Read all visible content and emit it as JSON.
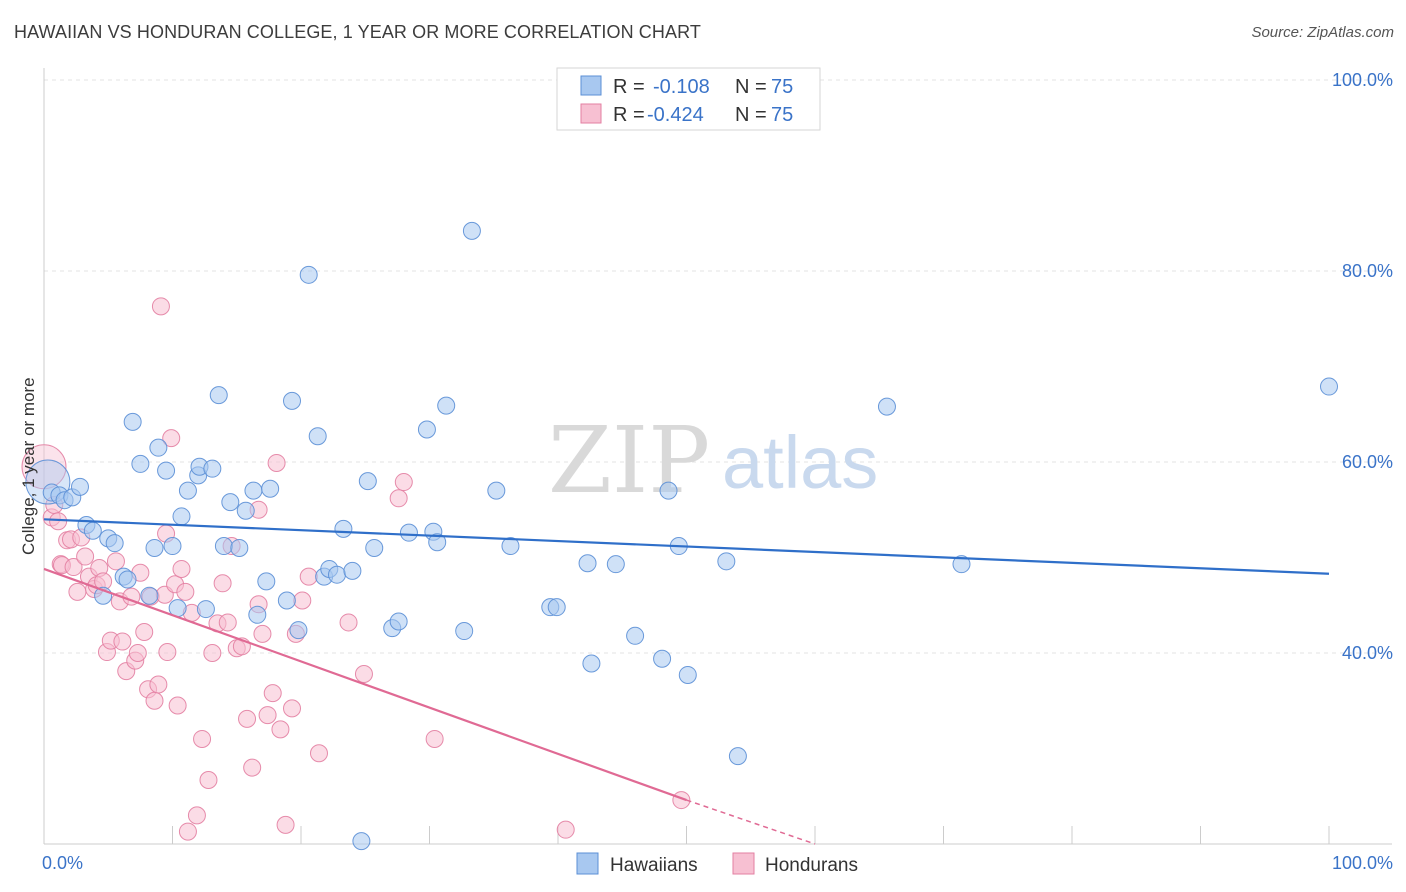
{
  "title": "HAWAIIAN VS HONDURAN COLLEGE, 1 YEAR OR MORE CORRELATION CHART",
  "source": "Source: ZipAtlas.com",
  "watermark": {
    "zip": "ZIP",
    "atlas": "atlas"
  },
  "colors": {
    "hawaiians_fill": "#a8c8f0",
    "hawaiians_stroke": "#5b8fd6",
    "hawaiians_line": "#2f6fc9",
    "hondurans_fill": "#f7c0d2",
    "hondurans_stroke": "#e37fa2",
    "hondurans_line": "#e06a94",
    "tick": "#3a73c8"
  },
  "legend": {
    "rows": [
      {
        "r_label": "R =",
        "r_value": "-0.108",
        "n_label": "N =",
        "n_value": "75"
      },
      {
        "r_label": "R =",
        "r_value": "-0.424",
        "n_label": "N =",
        "n_value": "75"
      }
    ]
  },
  "chart_data": {
    "type": "scatter",
    "title": "HAWAIIAN VS HONDURAN COLLEGE, 1 YEAR OR MORE CORRELATION CHART",
    "xlabel": "",
    "ylabel": "College, 1 year or more",
    "xlim": [
      0,
      100
    ],
    "ylim": [
      20,
      100
    ],
    "x_tick_labels": [
      "0.0%",
      "100.0%"
    ],
    "y_ticks": [
      40,
      60,
      80,
      100
    ],
    "y_tick_labels": [
      "40.0%",
      "60.0%",
      "80.0%",
      "100.0%"
    ],
    "grid": true,
    "legend_position": "top-center",
    "series": [
      {
        "name": "Hawaiians",
        "r": -0.108,
        "n": 75,
        "trend": {
          "x": [
            0,
            100
          ],
          "y": [
            54.0,
            48.3
          ]
        },
        "points": [
          [
            0.3,
            57.9
          ],
          [
            0.6,
            56.8
          ],
          [
            1.2,
            56.5
          ],
          [
            1.6,
            56.0
          ],
          [
            2.2,
            56.3
          ],
          [
            2.8,
            57.4
          ],
          [
            3.3,
            53.4
          ],
          [
            3.8,
            52.8
          ],
          [
            4.6,
            46.0
          ],
          [
            5.0,
            52.0
          ],
          [
            5.5,
            51.5
          ],
          [
            6.2,
            48.0
          ],
          [
            6.5,
            47.7
          ],
          [
            6.9,
            64.2
          ],
          [
            7.5,
            59.8
          ],
          [
            8.2,
            46.0
          ],
          [
            8.6,
            51.0
          ],
          [
            8.9,
            61.5
          ],
          [
            9.5,
            59.1
          ],
          [
            10.0,
            51.2
          ],
          [
            10.4,
            44.7
          ],
          [
            10.7,
            54.3
          ],
          [
            11.2,
            57.0
          ],
          [
            12.0,
            58.6
          ],
          [
            12.1,
            59.5
          ],
          [
            12.6,
            44.6
          ],
          [
            13.1,
            59.3
          ],
          [
            13.6,
            67.0
          ],
          [
            14.0,
            51.2
          ],
          [
            14.5,
            55.8
          ],
          [
            15.2,
            51.0
          ],
          [
            15.7,
            54.9
          ],
          [
            16.3,
            57.0
          ],
          [
            16.6,
            44.0
          ],
          [
            17.3,
            47.5
          ],
          [
            17.6,
            57.2
          ],
          [
            18.9,
            45.5
          ],
          [
            19.3,
            66.4
          ],
          [
            19.8,
            42.4
          ],
          [
            20.6,
            79.6
          ],
          [
            21.3,
            62.7
          ],
          [
            21.8,
            48.0
          ],
          [
            22.2,
            48.8
          ],
          [
            22.8,
            48.2
          ],
          [
            23.3,
            53.0
          ],
          [
            24.0,
            48.6
          ],
          [
            24.7,
            20.3
          ],
          [
            25.2,
            58.0
          ],
          [
            25.7,
            51.0
          ],
          [
            27.1,
            42.6
          ],
          [
            27.6,
            43.3
          ],
          [
            28.4,
            52.6
          ],
          [
            29.8,
            63.4
          ],
          [
            30.3,
            52.7
          ],
          [
            30.6,
            51.6
          ],
          [
            31.3,
            65.9
          ],
          [
            32.7,
            42.3
          ],
          [
            33.3,
            84.2
          ],
          [
            35.2,
            57.0
          ],
          [
            36.3,
            51.2
          ],
          [
            39.4,
            44.8
          ],
          [
            39.9,
            44.8
          ],
          [
            42.3,
            49.4
          ],
          [
            42.6,
            38.9
          ],
          [
            44.5,
            49.3
          ],
          [
            46.0,
            41.8
          ],
          [
            48.1,
            39.4
          ],
          [
            48.6,
            57.0
          ],
          [
            49.4,
            51.2
          ],
          [
            50.1,
            37.7
          ],
          [
            53.1,
            49.6
          ],
          [
            54.0,
            29.2
          ],
          [
            65.6,
            65.8
          ],
          [
            71.4,
            49.3
          ],
          [
            100.0,
            67.9
          ]
        ]
      },
      {
        "name": "Hondurans",
        "r": -0.424,
        "n": 75,
        "trend": {
          "x": [
            0,
            50
          ],
          "y": [
            48.8,
            24.6
          ]
        },
        "trend_dashed": {
          "x": [
            50,
            60
          ],
          "y": [
            24.6,
            20.0
          ]
        },
        "points": [
          [
            0.0,
            59.5
          ],
          [
            0.6,
            54.2
          ],
          [
            0.8,
            55.5
          ],
          [
            1.1,
            53.8
          ],
          [
            1.3,
            49.3
          ],
          [
            1.4,
            49.2
          ],
          [
            1.8,
            51.8
          ],
          [
            2.1,
            51.9
          ],
          [
            2.3,
            49.0
          ],
          [
            2.6,
            46.4
          ],
          [
            2.9,
            52.1
          ],
          [
            3.2,
            50.1
          ],
          [
            3.5,
            48.0
          ],
          [
            3.9,
            46.7
          ],
          [
            4.1,
            47.1
          ],
          [
            4.3,
            48.9
          ],
          [
            4.6,
            47.5
          ],
          [
            4.9,
            40.1
          ],
          [
            5.2,
            41.3
          ],
          [
            5.6,
            49.6
          ],
          [
            5.9,
            45.4
          ],
          [
            6.1,
            41.2
          ],
          [
            6.4,
            38.1
          ],
          [
            6.8,
            45.9
          ],
          [
            7.1,
            39.2
          ],
          [
            7.3,
            40.0
          ],
          [
            7.5,
            48.4
          ],
          [
            7.8,
            42.2
          ],
          [
            8.1,
            36.2
          ],
          [
            8.3,
            45.9
          ],
          [
            8.6,
            35.0
          ],
          [
            8.9,
            36.7
          ],
          [
            9.1,
            76.3
          ],
          [
            9.4,
            46.1
          ],
          [
            9.6,
            40.1
          ],
          [
            9.9,
            62.5
          ],
          [
            10.2,
            47.2
          ],
          [
            10.4,
            34.5
          ],
          [
            10.7,
            48.8
          ],
          [
            11.0,
            46.4
          ],
          [
            11.2,
            21.3
          ],
          [
            11.5,
            44.2
          ],
          [
            11.9,
            23.0
          ],
          [
            12.3,
            31.0
          ],
          [
            12.8,
            26.7
          ],
          [
            13.1,
            40.0
          ],
          [
            13.5,
            43.1
          ],
          [
            13.9,
            47.3
          ],
          [
            14.3,
            43.2
          ],
          [
            14.6,
            51.2
          ],
          [
            15.0,
            40.5
          ],
          [
            15.4,
            40.7
          ],
          [
            15.8,
            33.1
          ],
          [
            16.2,
            28.0
          ],
          [
            16.7,
            45.1
          ],
          [
            17.0,
            42.0
          ],
          [
            17.4,
            33.5
          ],
          [
            17.8,
            35.8
          ],
          [
            18.1,
            59.9
          ],
          [
            18.4,
            32.0
          ],
          [
            18.8,
            22.0
          ],
          [
            19.3,
            34.2
          ],
          [
            19.6,
            42.0
          ],
          [
            20.1,
            45.5
          ],
          [
            20.6,
            48.0
          ],
          [
            21.4,
            29.5
          ],
          [
            23.7,
            43.2
          ],
          [
            24.9,
            37.8
          ],
          [
            27.6,
            56.2
          ],
          [
            28.0,
            57.9
          ],
          [
            30.4,
            31.0
          ],
          [
            40.6,
            21.5
          ],
          [
            49.6,
            24.6
          ],
          [
            16.7,
            55.0
          ],
          [
            9.5,
            52.5
          ]
        ]
      }
    ]
  },
  "bottom_legend": [
    {
      "name": "Hawaiians"
    },
    {
      "name": "Hondurans"
    }
  ]
}
